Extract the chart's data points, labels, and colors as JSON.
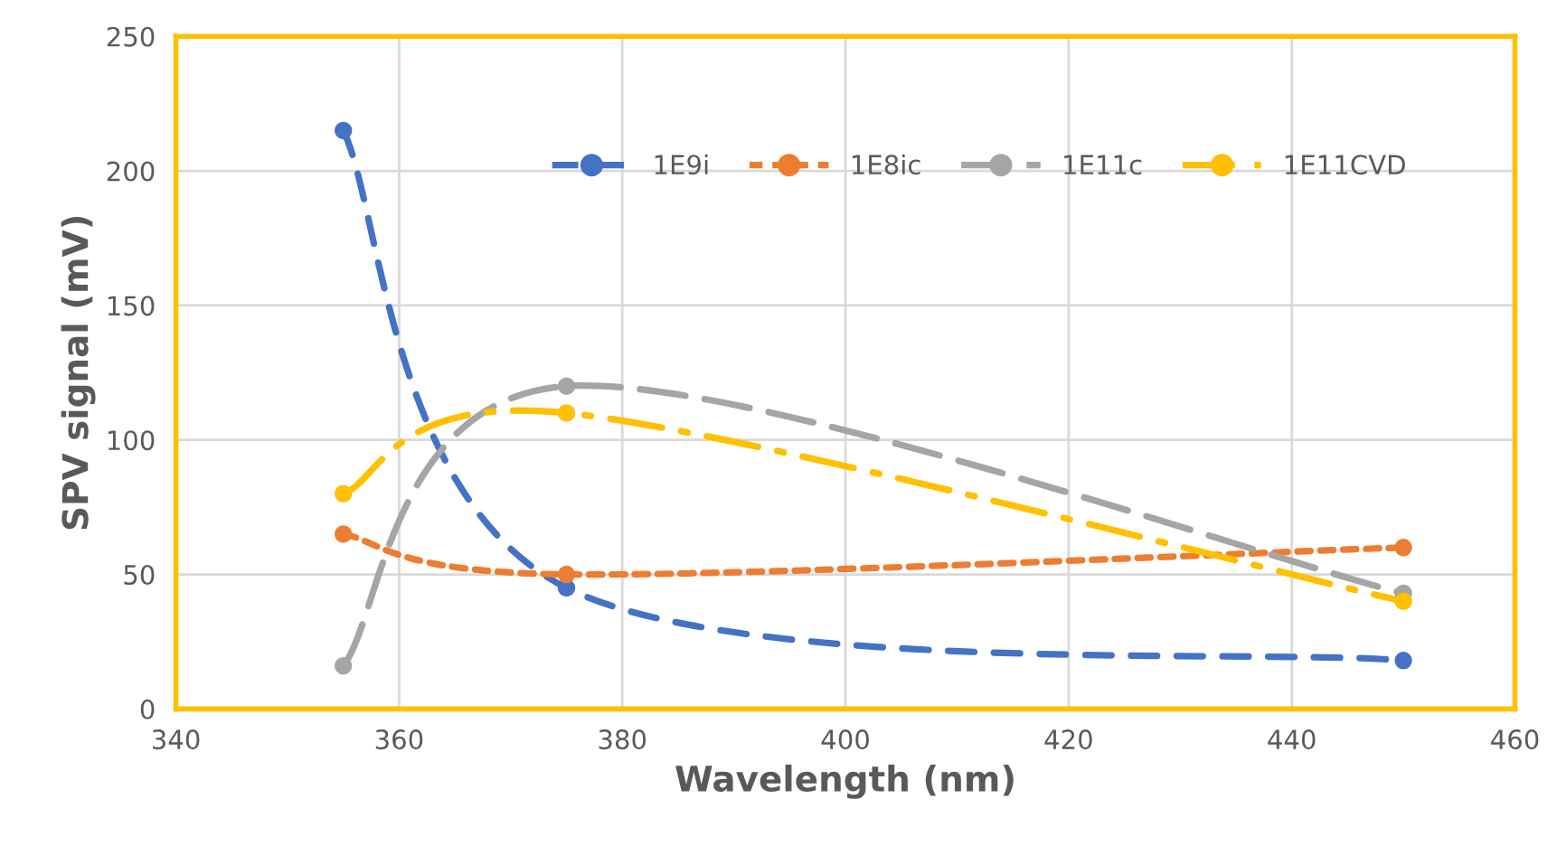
{
  "chart_data": {
    "type": "line",
    "xlabel": "Wavelength (nm)",
    "ylabel": "SPV signal (mV)",
    "x": [
      355,
      375,
      450
    ],
    "series": [
      {
        "name": "1E9i",
        "color": "#4472c4",
        "values": [
          215,
          45,
          18
        ],
        "line_style": "dashed"
      },
      {
        "name": "1E8ic",
        "color": "#ed7d31",
        "values": [
          65,
          50,
          60
        ],
        "line_style": "dotted"
      },
      {
        "name": "1E11c",
        "color": "#a5a5a5",
        "values": [
          16,
          120,
          43
        ],
        "line_style": "longdash"
      },
      {
        "name": "1E11CVD",
        "color": "#ffc000",
        "values": [
          80,
          110,
          40
        ],
        "line_style": "dashdot"
      }
    ],
    "xlim": [
      340,
      460
    ],
    "xticks": [
      340,
      360,
      380,
      400,
      420,
      440,
      460
    ],
    "ylim": [
      0,
      250
    ],
    "yticks": [
      0,
      50,
      100,
      150,
      200,
      250
    ],
    "grid": true,
    "legend": "top",
    "marker": "circle"
  }
}
